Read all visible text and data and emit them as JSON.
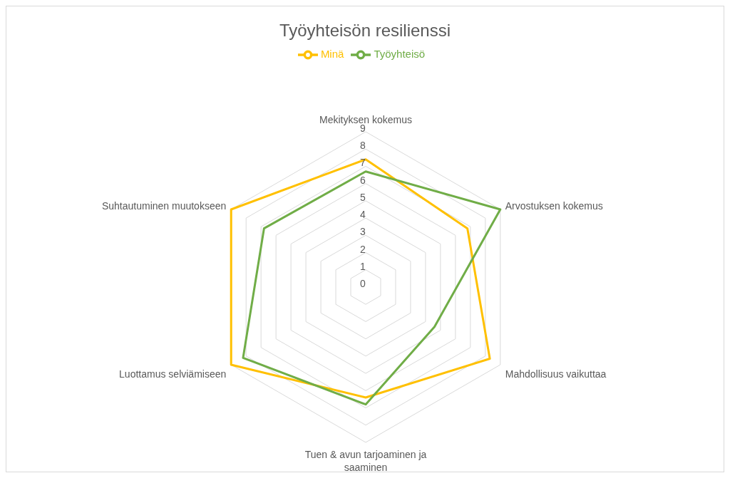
{
  "chart_data": {
    "type": "radar",
    "title": "Työyhteisön resilienssi",
    "categories": [
      "Mekityksen kokemus",
      "Arvostuksen kokemus",
      "Mahdollisuus vaikuttaa",
      "Tuen & avun tarjoaminen ja saaminen",
      "Luottamus selviämiseen",
      "Suhtautuminen muutokseen"
    ],
    "series": [
      {
        "name": "Minä",
        "color": "#ffc000",
        "values": [
          7.4,
          6.8,
          8.3,
          6.4,
          9.0,
          9.0
        ]
      },
      {
        "name": "Työyhteisö",
        "color": "#70ad47",
        "values": [
          6.7,
          9.0,
          4.6,
          6.8,
          8.2,
          6.8
        ]
      }
    ],
    "ylim": [
      0,
      9
    ],
    "yticks": [
      0,
      1,
      2,
      3,
      4,
      5,
      6,
      7,
      8,
      9
    ],
    "grid": true,
    "legend": "top",
    "marker": "none",
    "line_style": "solid"
  }
}
